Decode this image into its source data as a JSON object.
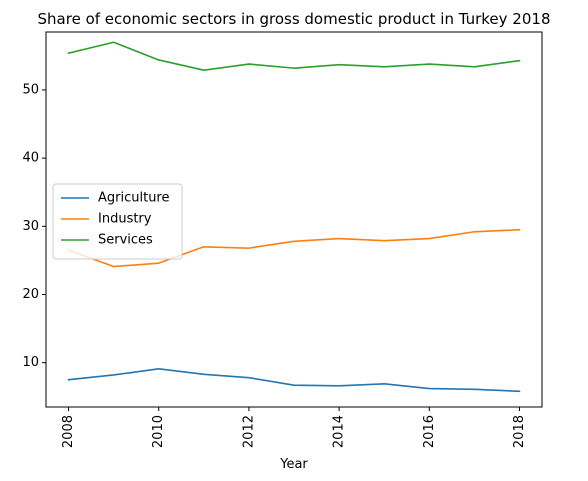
{
  "chart_data": {
    "type": "line",
    "title": "Share of economic sectors in gross domestic product in Turkey 2018",
    "xlabel": "Year",
    "ylabel": "",
    "x": [
      2008,
      2009,
      2010,
      2011,
      2012,
      2013,
      2014,
      2015,
      2016,
      2017,
      2018
    ],
    "xticks": [
      "2008",
      "2010",
      "2012",
      "2014",
      "2016",
      "2018"
    ],
    "yticks": [
      "10",
      "20",
      "30",
      "40",
      "50"
    ],
    "xlim": [
      2007.5,
      2018.5
    ],
    "ylim": [
      3.5,
      58.5
    ],
    "grid": false,
    "legend_position": "center-left",
    "series": [
      {
        "name": "Agriculture",
        "color": "#1f77b4",
        "values": [
          7.5,
          8.2,
          9.1,
          8.3,
          7.8,
          6.7,
          6.6,
          6.9,
          6.2,
          6.1,
          5.8
        ]
      },
      {
        "name": "Industry",
        "color": "#ff7f0e",
        "values": [
          26.5,
          24.1,
          24.6,
          27.0,
          26.8,
          27.8,
          28.2,
          27.9,
          28.2,
          29.2,
          29.5
        ]
      },
      {
        "name": "Services",
        "color": "#2ca02c",
        "values": [
          55.4,
          57.0,
          54.4,
          52.9,
          53.8,
          53.2,
          53.7,
          53.4,
          53.8,
          53.4,
          54.3
        ]
      }
    ]
  }
}
